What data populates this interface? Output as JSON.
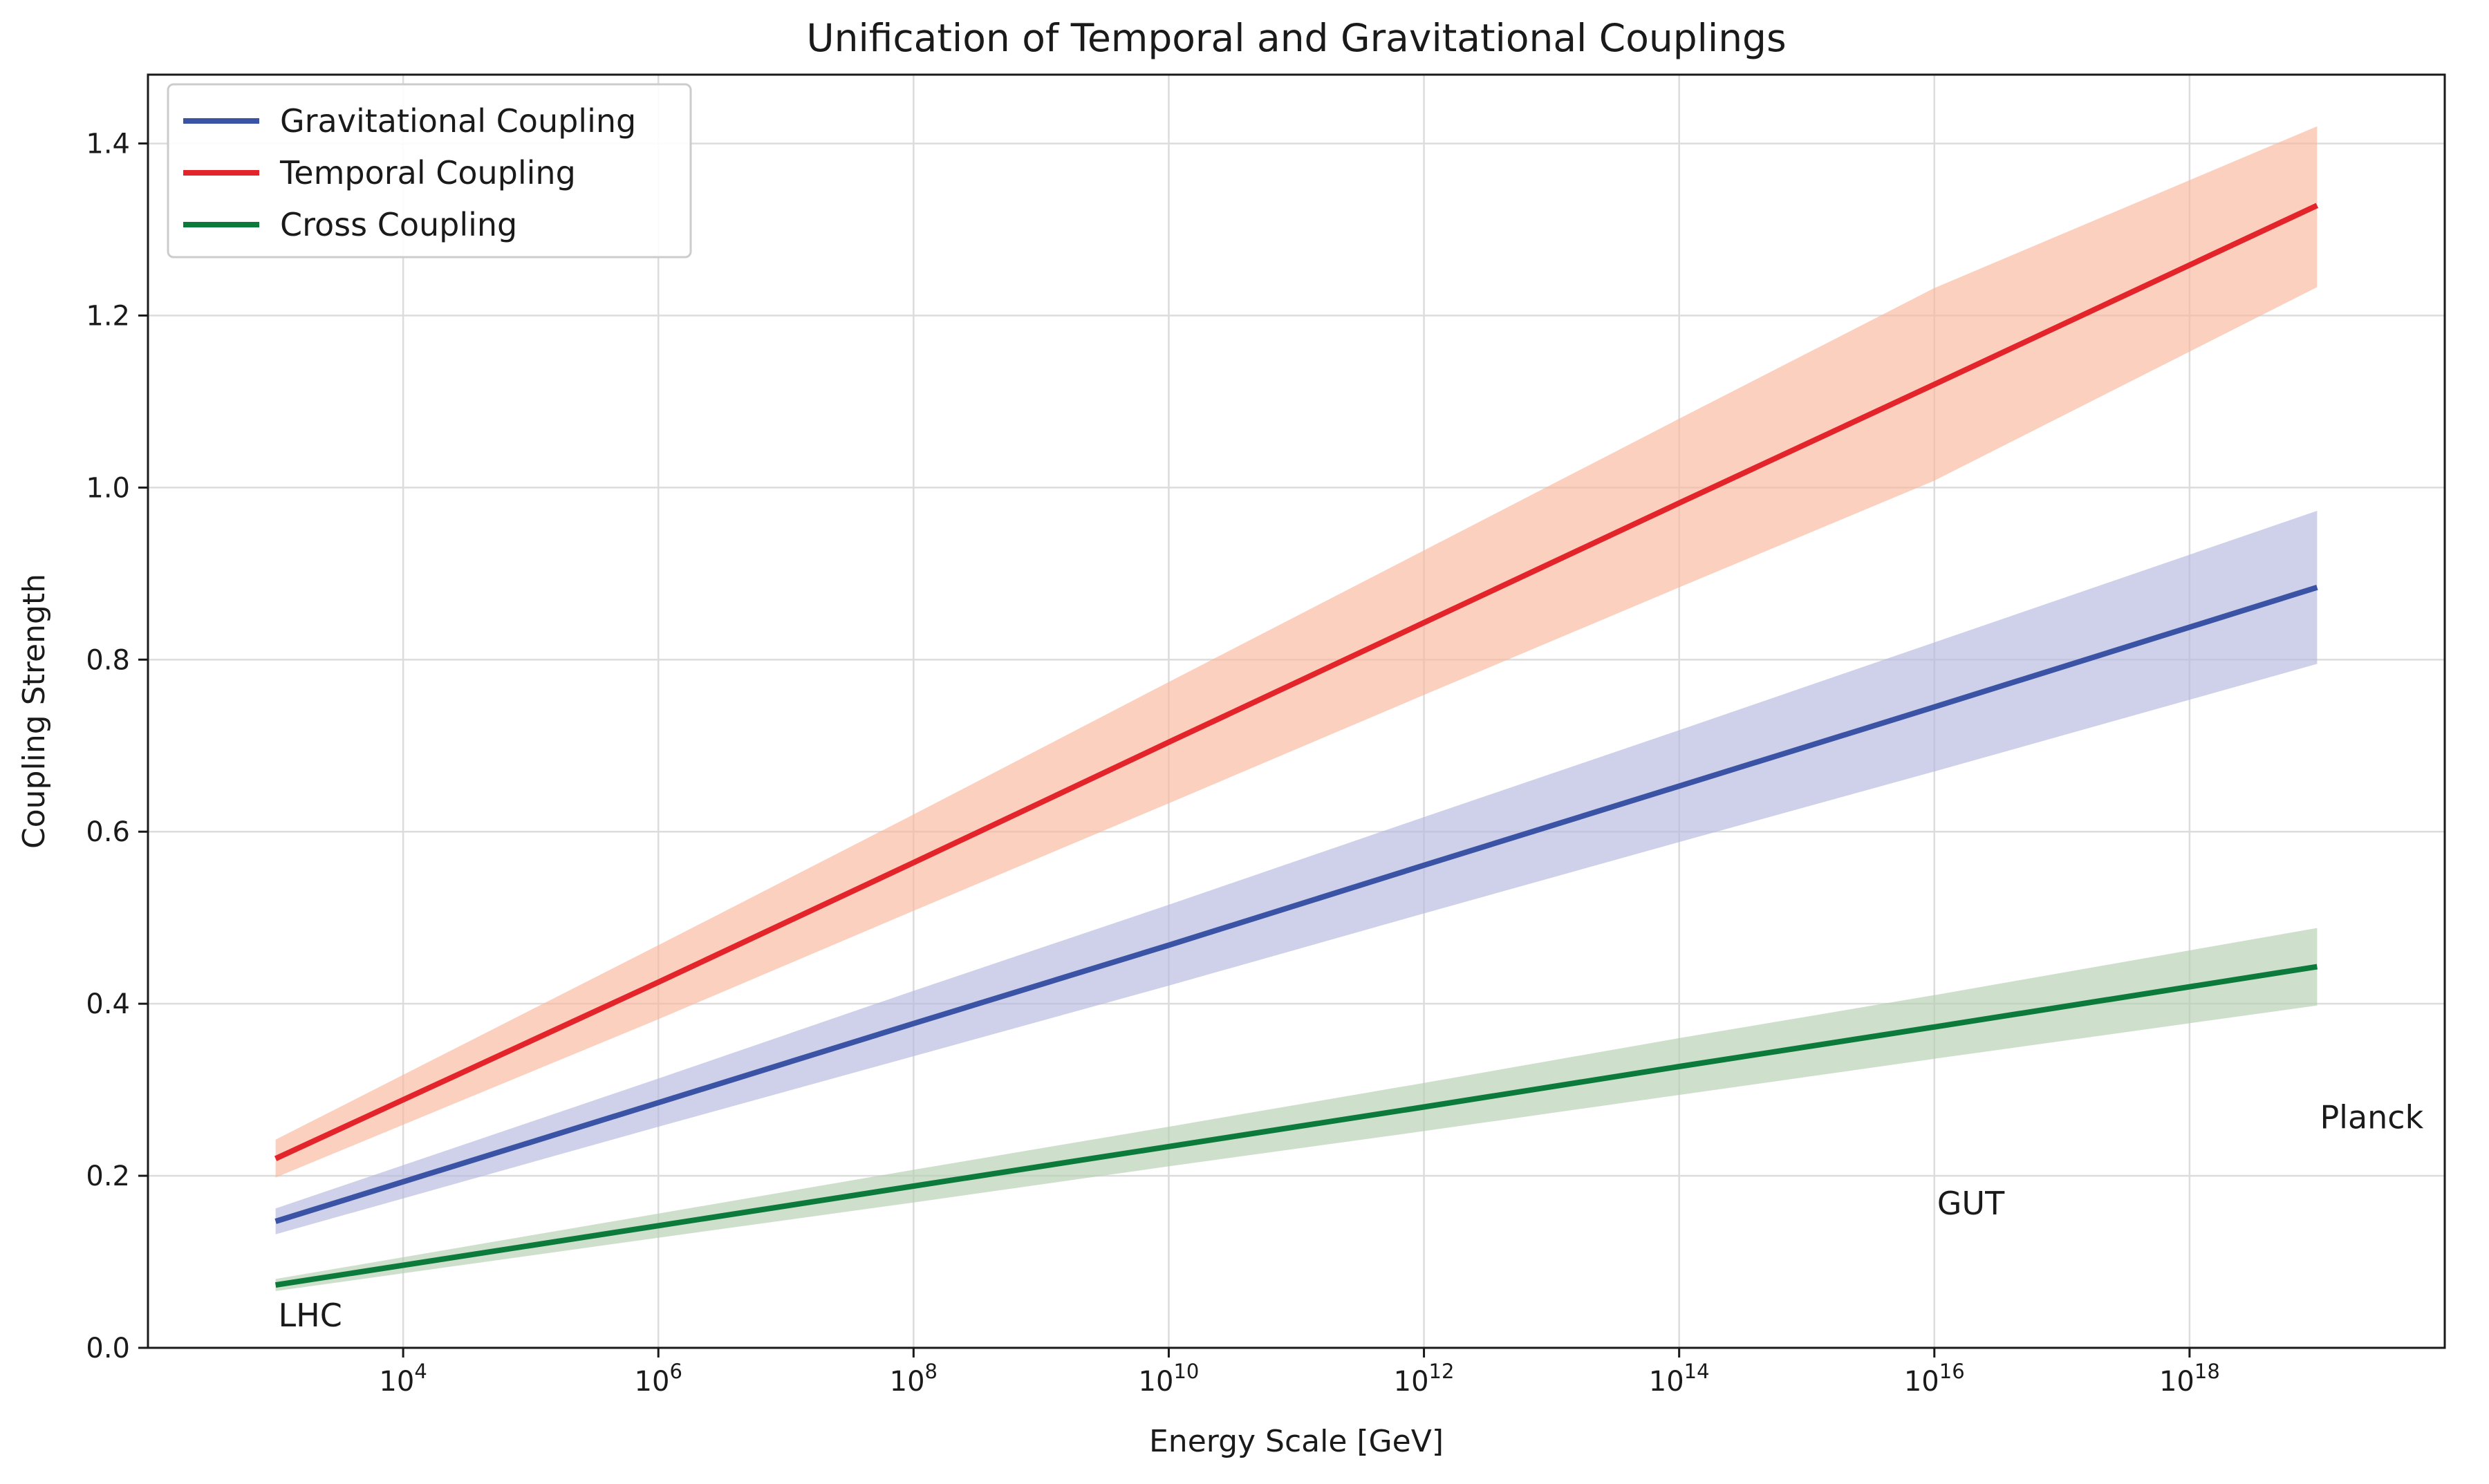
{
  "chart_data": {
    "type": "line",
    "title": "Unification of Temporal and Gravitational Couplings",
    "xlabel": "Energy Scale [GeV]",
    "ylabel": "Coupling Strength",
    "xscale": "log",
    "xlim": [
      100.0,
      1e+20
    ],
    "ylim": [
      0.0,
      1.48
    ],
    "x_tick_exponents": [
      4,
      6,
      8,
      10,
      12,
      14,
      16,
      18
    ],
    "x_tick_base": "10",
    "y_ticks": [
      "0.0",
      "0.2",
      "0.4",
      "0.6",
      "0.8",
      "1.0",
      "1.2",
      "1.4"
    ],
    "grid": true,
    "legend_position": "top-left",
    "x": [
      1000.0,
      1000000.0,
      100000000.0,
      10000000000.0,
      1000000000000.0,
      100000000000000.0,
      1e+16,
      1e+19
    ],
    "series": [
      {
        "name": "Gravitational Coupling",
        "color": "#3a53a4",
        "band_color": "#b3b8dd",
        "values": [
          0.147,
          0.285,
          0.377,
          0.468,
          0.561,
          0.653,
          0.745,
          0.884
        ],
        "lower": [
          0.132,
          0.257,
          0.339,
          0.421,
          0.505,
          0.588,
          0.67,
          0.795
        ],
        "upper": [
          0.162,
          0.313,
          0.415,
          0.515,
          0.617,
          0.718,
          0.82,
          0.973
        ]
      },
      {
        "name": "Temporal Coupling",
        "color": "#e3242b",
        "band_color": "#f9b79c",
        "values": [
          0.22,
          0.425,
          0.564,
          0.704,
          0.843,
          0.982,
          1.12,
          1.328
        ],
        "lower": [
          0.198,
          0.382,
          0.508,
          0.633,
          0.759,
          0.884,
          1.008,
          1.233
        ],
        "upper": [
          0.242,
          0.468,
          0.62,
          0.774,
          0.927,
          1.08,
          1.232,
          1.42
        ]
      },
      {
        "name": "Cross Coupling",
        "color": "#0b7a3b",
        "band_color": "#b4cfb0",
        "values": [
          0.073,
          0.142,
          0.188,
          0.234,
          0.28,
          0.327,
          0.373,
          0.443
        ],
        "lower": [
          0.066,
          0.128,
          0.169,
          0.211,
          0.252,
          0.294,
          0.336,
          0.398
        ],
        "upper": [
          0.08,
          0.156,
          0.207,
          0.257,
          0.308,
          0.36,
          0.41,
          0.488
        ]
      }
    ],
    "annotations": [
      {
        "text": "LHC",
        "x": 1000.0,
        "y": 0.025
      },
      {
        "text": "GUT",
        "x": 1e+16,
        "y": 0.155
      },
      {
        "text": "Planck",
        "x": 1e+19,
        "y": 0.255
      }
    ]
  }
}
